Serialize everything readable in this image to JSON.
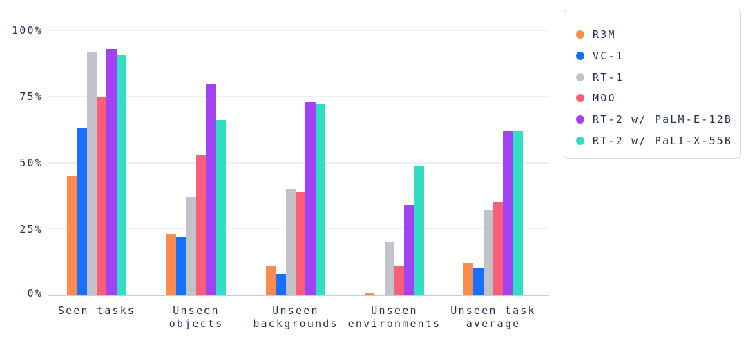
{
  "chart_data": {
    "type": "bar",
    "title": "",
    "xlabel": "",
    "ylabel": "",
    "ylim": [
      0,
      100
    ],
    "grid": true,
    "legend_position": "right",
    "categories": [
      "Seen tasks",
      "Unseen objects",
      "Unseen backgrounds",
      "Unseen environments",
      "Unseen task average"
    ],
    "category_label_lines": [
      [
        "Seen tasks"
      ],
      [
        "Unseen",
        "objects"
      ],
      [
        "Unseen",
        "backgrounds"
      ],
      [
        "Unseen",
        "environments"
      ],
      [
        "Unseen task",
        "average"
      ]
    ],
    "y_ticks": [
      {
        "value": 100,
        "label": "100%"
      },
      {
        "value": 75,
        "label": "75%"
      },
      {
        "value": 50,
        "label": "50%"
      },
      {
        "value": 25,
        "label": "25%"
      },
      {
        "value": 0,
        "label": "0%"
      }
    ],
    "series": [
      {
        "name": "R3M",
        "color": "#FC8C4D",
        "values": [
          45,
          23,
          11,
          1,
          12
        ]
      },
      {
        "name": "VC-1",
        "color": "#176FFB",
        "values": [
          63,
          22,
          8,
          0,
          10
        ]
      },
      {
        "name": "RT-1",
        "color": "#C0C3C9",
        "values": [
          92,
          37,
          40,
          20,
          32
        ]
      },
      {
        "name": "MOO",
        "color": "#FB5E79",
        "values": [
          75,
          53,
          39,
          11,
          35
        ]
      },
      {
        "name": "RT-2 w/ PaLM-E-12B",
        "color": "#A342F4",
        "values": [
          93,
          80,
          73,
          34,
          62
        ]
      },
      {
        "name": "RT-2 w/ PaLI-X-55B",
        "color": "#2FDEC3",
        "values": [
          91,
          66,
          72,
          49,
          62
        ]
      }
    ]
  },
  "colors": {
    "text": "#1E2D54",
    "gridline": "#EDEFF4",
    "axis_line": "#C9CCD6",
    "legend_border": "#DADCE1",
    "background": "#FFFFFF"
  }
}
